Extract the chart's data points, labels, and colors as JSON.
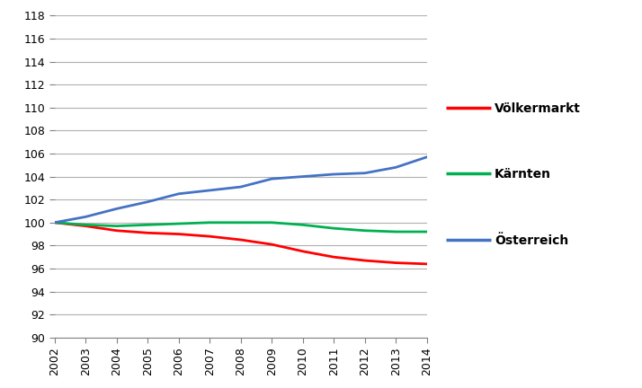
{
  "years": [
    2002,
    2003,
    2004,
    2005,
    2006,
    2007,
    2008,
    2009,
    2010,
    2011,
    2012,
    2013,
    2014
  ],
  "voelkermarkt": [
    100.0,
    99.7,
    99.3,
    99.1,
    99.0,
    98.8,
    98.5,
    98.1,
    97.5,
    97.0,
    96.7,
    96.5,
    96.4
  ],
  "kaernten": [
    100.0,
    99.8,
    99.7,
    99.8,
    99.9,
    100.0,
    100.0,
    100.0,
    99.8,
    99.5,
    99.3,
    99.2,
    99.2
  ],
  "oesterreich": [
    100.0,
    100.5,
    101.2,
    101.8,
    102.5,
    102.8,
    103.1,
    103.8,
    104.0,
    104.2,
    104.3,
    104.8,
    105.7
  ],
  "voelkermarkt_color": "#ff0000",
  "kaernten_color": "#00b050",
  "oesterreich_color": "#4472c4",
  "ylim": [
    90,
    118
  ],
  "yticks": [
    90,
    92,
    94,
    96,
    98,
    100,
    102,
    104,
    106,
    108,
    110,
    112,
    114,
    116,
    118
  ],
  "legend_labels": [
    "Völkermarkt",
    "Kärnten",
    "Österreich"
  ],
  "line_width": 2.0,
  "background_color": "#ffffff",
  "grid_color": "#b0b0b0",
  "tick_fontsize": 9,
  "legend_fontsize": 10
}
